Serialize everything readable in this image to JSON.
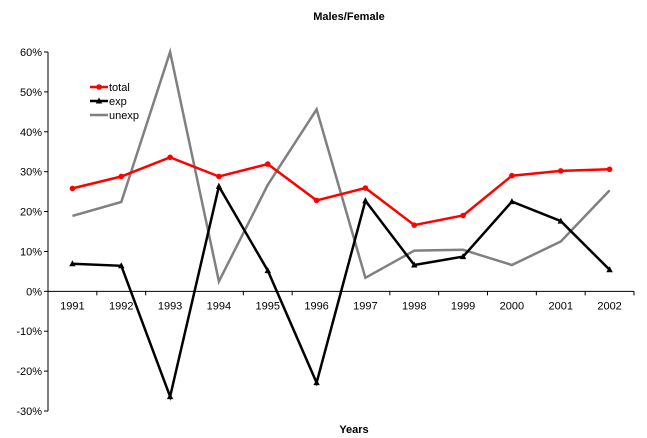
{
  "chart_data": {
    "type": "line",
    "title": "Males/Female",
    "xlabel": "Years",
    "ylabel": "",
    "ylim": [
      -0.3,
      0.6
    ],
    "yticks": [
      {
        "value": 0.6,
        "label": "60%"
      },
      {
        "value": 0.5,
        "label": "50%"
      },
      {
        "value": 0.4,
        "label": "40%"
      },
      {
        "value": 0.3,
        "label": "30%"
      },
      {
        "value": 0.2,
        "label": "20%"
      },
      {
        "value": 0.1,
        "label": "10%"
      },
      {
        "value": 0.0,
        "label": "0%"
      },
      {
        "value": -0.1,
        "label": "-10%"
      },
      {
        "value": -0.2,
        "label": "-20%"
      },
      {
        "value": -0.3,
        "label": "-30%"
      }
    ],
    "categories": [
      "1991",
      "1992",
      "1993",
      "1994",
      "1995",
      "1996",
      "1997",
      "1998",
      "1999",
      "2000",
      "2001",
      "2002"
    ],
    "grid": false,
    "legend_position": "top-left",
    "series": [
      {
        "name": "total",
        "color": "#ff0000",
        "marker": "circle",
        "values": [
          0.258,
          0.288,
          0.336,
          0.288,
          0.319,
          0.228,
          0.259,
          0.166,
          0.19,
          0.29,
          0.302,
          0.306
        ]
      },
      {
        "name": "exp",
        "color": "#000000",
        "marker": "triangle",
        "values": [
          0.069,
          0.064,
          -0.264,
          0.263,
          0.052,
          -0.229,
          0.227,
          0.066,
          0.087,
          0.225,
          0.176,
          0.054
        ]
      },
      {
        "name": "unexp",
        "color": "#808080",
        "marker": "none",
        "values": [
          0.189,
          0.224,
          0.6,
          0.025,
          0.267,
          0.456,
          0.034,
          0.102,
          0.104,
          0.066,
          0.125,
          0.253
        ]
      }
    ]
  }
}
